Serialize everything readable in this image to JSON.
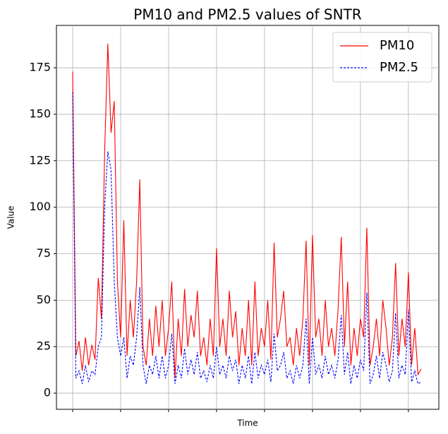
{
  "chart_data": {
    "type": "line",
    "title": "PM10 and PM2.5 values of SNTR",
    "x_label": "Time",
    "y_label": "Value",
    "categories": [
      null,
      null,
      null,
      null,
      null,
      null,
      null,
      null,
      null,
      null,
      null,
      null,
      null,
      null,
      null,
      null,
      null,
      null,
      null,
      null,
      null,
      null,
      null,
      null,
      null,
      null,
      null,
      null,
      null,
      null,
      null,
      null,
      null,
      null,
      null,
      null,
      null,
      null,
      null,
      null,
      null,
      null,
      null,
      null,
      null,
      null,
      null,
      null,
      null,
      null,
      null,
      null,
      null,
      null,
      null,
      null,
      null,
      null,
      null,
      null,
      null,
      null,
      null,
      null,
      null,
      null,
      null,
      null,
      null,
      null,
      null,
      null,
      null,
      null,
      null,
      null,
      null,
      null,
      null,
      null,
      null,
      null,
      null,
      null,
      null,
      null,
      null,
      null,
      null,
      null,
      null,
      null,
      null,
      null,
      null,
      null,
      null,
      null,
      null,
      null,
      null,
      null,
      null,
      null,
      null,
      null,
      null,
      null,
      null,
      null
    ],
    "series": [
      {
        "name": "PM10",
        "color": "#ff0000",
        "dash": false,
        "values": [
          173,
          20,
          28,
          12,
          30,
          15,
          26,
          18,
          62,
          40,
          130,
          188,
          140,
          157,
          60,
          30,
          93,
          20,
          50,
          30,
          60,
          115,
          25,
          15,
          40,
          20,
          47,
          25,
          50,
          20,
          35,
          60,
          8,
          40,
          20,
          56,
          25,
          42,
          30,
          55,
          20,
          30,
          15,
          40,
          20,
          78,
          25,
          40,
          20,
          55,
          30,
          44,
          15,
          35,
          20,
          50,
          15,
          60,
          20,
          35,
          25,
          50,
          18,
          81,
          30,
          40,
          55,
          25,
          30,
          15,
          35,
          20,
          40,
          82,
          15,
          85,
          30,
          40,
          20,
          50,
          25,
          35,
          20,
          45,
          84,
          25,
          60,
          15,
          35,
          20,
          40,
          30,
          89,
          15,
          25,
          40,
          20,
          50,
          35,
          15,
          30,
          70,
          20,
          40,
          25,
          65,
          15,
          35,
          10,
          13
        ]
      },
      {
        "name": "PM2.5",
        "color": "#0000ff",
        "dash": true,
        "values": [
          162,
          8,
          12,
          5,
          15,
          6,
          12,
          10,
          25,
          30,
          100,
          130,
          120,
          60,
          30,
          20,
          30,
          8,
          20,
          15,
          30,
          57,
          15,
          5,
          15,
          10,
          20,
          8,
          20,
          8,
          15,
          32,
          5,
          15,
          8,
          24,
          10,
          18,
          10,
          22,
          8,
          12,
          6,
          15,
          8,
          25,
          10,
          15,
          8,
          20,
          12,
          18,
          5,
          15,
          8,
          20,
          5,
          22,
          8,
          15,
          10,
          18,
          6,
          32,
          12,
          15,
          22,
          8,
          12,
          5,
          15,
          8,
          15,
          40,
          5,
          30,
          10,
          15,
          8,
          20,
          10,
          15,
          8,
          18,
          42,
          10,
          22,
          5,
          15,
          8,
          18,
          12,
          54,
          5,
          10,
          20,
          8,
          22,
          15,
          6,
          12,
          43,
          8,
          15,
          10,
          45,
          6,
          12,
          5,
          6
        ]
      }
    ],
    "ylim": [
      -8.7,
      197.8
    ],
    "yticks": [
      0,
      25,
      50,
      75,
      100,
      125,
      150,
      175
    ],
    "grid": true,
    "legend": "upper right"
  }
}
